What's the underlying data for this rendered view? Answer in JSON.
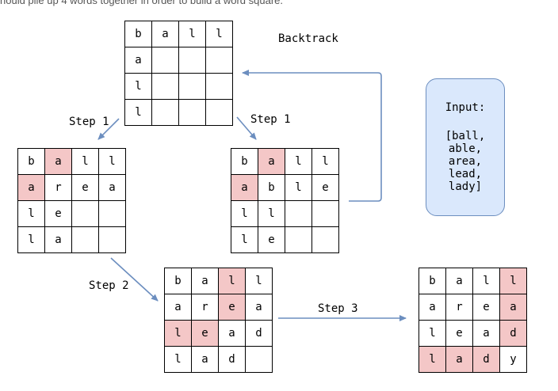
{
  "caption": "hould pile up 4 words together in order to build a word square.",
  "labels": {
    "backtrack": "Backtrack",
    "step1_left": "Step 1",
    "step1_right": "Step 1",
    "step2": "Step 2",
    "step3": "Step 3"
  },
  "input_box": {
    "title": "Input:",
    "words": [
      "[ball,",
      "able,",
      "area,",
      "lead,",
      "lady]"
    ]
  },
  "grids": {
    "top": {
      "cells": [
        [
          "b",
          "a",
          "l",
          "l"
        ],
        [
          "a",
          "",
          "",
          ""
        ],
        [
          "l",
          "",
          "",
          ""
        ],
        [
          "l",
          "",
          "",
          ""
        ]
      ],
      "highlight": []
    },
    "left": {
      "cells": [
        [
          "b",
          "a",
          "l",
          "l"
        ],
        [
          "a",
          "r",
          "e",
          "a"
        ],
        [
          "l",
          "e",
          "",
          ""
        ],
        [
          "l",
          "a",
          "",
          ""
        ]
      ],
      "highlight": [
        [
          0,
          1
        ],
        [
          1,
          0
        ]
      ]
    },
    "right": {
      "cells": [
        [
          "b",
          "a",
          "l",
          "l"
        ],
        [
          "a",
          "b",
          "l",
          "e"
        ],
        [
          "l",
          "l",
          "",
          ""
        ],
        [
          "l",
          "e",
          "",
          ""
        ]
      ],
      "highlight": [
        [
          0,
          1
        ],
        [
          1,
          0
        ]
      ]
    },
    "middle": {
      "cells": [
        [
          "b",
          "a",
          "l",
          "l"
        ],
        [
          "a",
          "r",
          "e",
          "a"
        ],
        [
          "l",
          "e",
          "a",
          "d"
        ],
        [
          "l",
          "a",
          "d",
          ""
        ]
      ],
      "highlight": [
        [
          0,
          2
        ],
        [
          1,
          2
        ],
        [
          2,
          0
        ],
        [
          2,
          1
        ]
      ]
    },
    "final": {
      "cells": [
        [
          "b",
          "a",
          "l",
          "l"
        ],
        [
          "a",
          "r",
          "e",
          "a"
        ],
        [
          "l",
          "e",
          "a",
          "d"
        ],
        [
          "l",
          "a",
          "d",
          "y"
        ]
      ],
      "highlight": [
        [
          0,
          3
        ],
        [
          1,
          3
        ],
        [
          2,
          3
        ],
        [
          3,
          0
        ],
        [
          3,
          1
        ],
        [
          3,
          2
        ]
      ]
    }
  },
  "colors": {
    "highlight": "#f4c7c7",
    "arrow": "#6c8ebf",
    "input_fill": "#dae8fc",
    "input_stroke": "#6c8ebf"
  }
}
